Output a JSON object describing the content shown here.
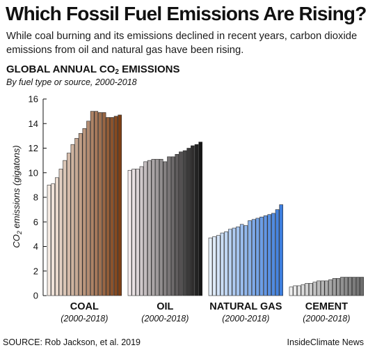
{
  "header": {
    "title": "Which Fossil Fuel Emissions Are Rising?",
    "subtitle": "While coal burning and its emissions declined in recent years, carbon dioxide emissions from oil and natural gas have been rising."
  },
  "footer": {
    "source": "SOURCE: Rob Jackson, et al. 2019",
    "credit": "InsideClimate News"
  },
  "chart_data": {
    "type": "bar",
    "title_prefix": "GLOBAL ANNUAL CO",
    "title_sub": "2",
    "title_suffix": " EMISSIONS",
    "subtitle": "By fuel type or source, 2000-2018",
    "ylabel_prefix": "CO",
    "ylabel_sub": "2",
    "ylabel_suffix": " emissions (gigatons)",
    "ylim": [
      0,
      16
    ],
    "yticks": [
      0,
      2,
      4,
      6,
      8,
      10,
      12,
      14,
      16
    ],
    "grid": false,
    "legend": "none",
    "x": [
      2000,
      2001,
      2002,
      2003,
      2004,
      2005,
      2006,
      2007,
      2008,
      2009,
      2010,
      2011,
      2012,
      2013,
      2014,
      2015,
      2016,
      2017,
      2018
    ],
    "series": [
      {
        "name": "COAL",
        "period": "(2000-2018)",
        "color_start": "#f6ece4",
        "color_end": "#7e4016",
        "values": [
          9.0,
          9.1,
          9.6,
          10.3,
          11.0,
          11.6,
          12.3,
          12.8,
          13.2,
          13.6,
          14.2,
          15.0,
          15.0,
          14.9,
          14.9,
          14.5,
          14.5,
          14.6,
          14.7
        ]
      },
      {
        "name": "OIL",
        "period": "(2000-2018)",
        "color_start": "#f4ecee",
        "color_end": "#161616",
        "values": [
          10.2,
          10.3,
          10.3,
          10.5,
          10.9,
          11.0,
          11.1,
          11.1,
          11.1,
          10.9,
          11.3,
          11.3,
          11.5,
          11.7,
          11.8,
          12.0,
          12.2,
          12.3,
          12.5
        ]
      },
      {
        "name": "NATURAL GAS",
        "period": "(2000-2018)",
        "color_start": "#e6f0fa",
        "color_end": "#3d7ede",
        "values": [
          4.7,
          4.8,
          4.9,
          5.1,
          5.2,
          5.4,
          5.5,
          5.6,
          5.8,
          5.7,
          6.1,
          6.2,
          6.3,
          6.4,
          6.5,
          6.6,
          6.7,
          7.0,
          7.4
        ]
      },
      {
        "name": "CEMENT",
        "period": "(2000-2018)",
        "color_start": "#efefef",
        "color_end": "#6e6e6e",
        "values": [
          0.7,
          0.8,
          0.8,
          0.9,
          1.0,
          1.0,
          1.1,
          1.2,
          1.2,
          1.2,
          1.3,
          1.4,
          1.4,
          1.5,
          1.5,
          1.5,
          1.5,
          1.5,
          1.5
        ]
      }
    ]
  }
}
